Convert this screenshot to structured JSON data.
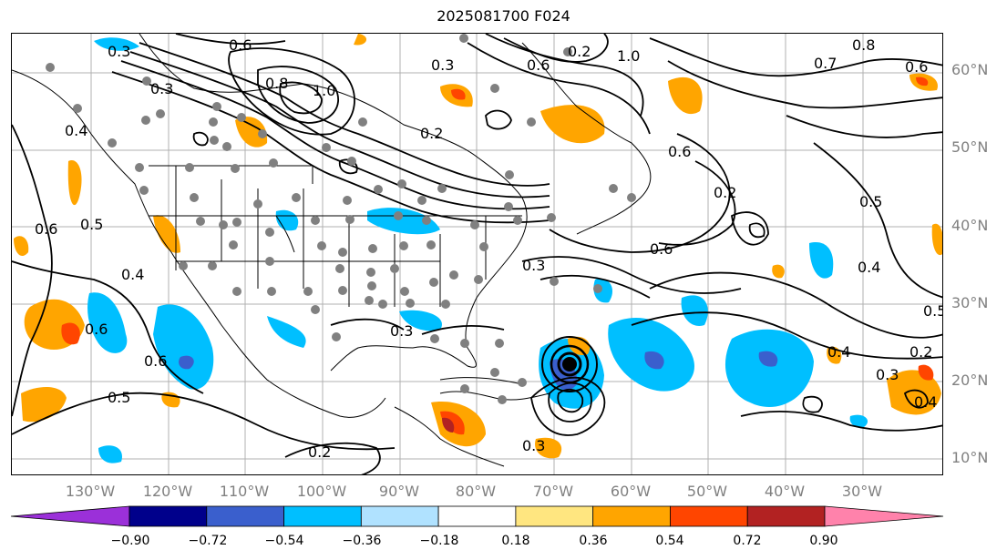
{
  "title": "2025081700 F024",
  "lat_labels": [
    "60°N",
    "50°N",
    "40°N",
    "30°N",
    "20°N",
    "10°N"
  ],
  "lon_labels": [
    "130°W",
    "120°W",
    "110°W",
    "100°W",
    "90°W",
    "80°W",
    "70°W",
    "60°W",
    "50°W",
    "40°W",
    "30°W"
  ],
  "contour_labels": [
    "0.3",
    "0.6",
    "0.3",
    "1.0",
    "0.2",
    "0.8",
    "0.3",
    "1.0",
    "0.6",
    "0.2",
    "0.8",
    "0.7",
    "0.6",
    "0.4",
    "0.5",
    "0.6",
    "0.6",
    "0.3",
    "0.6",
    "0.5",
    "0.4",
    "0.4",
    "0.3",
    "0.6",
    "0.2",
    "0.5",
    "0.4",
    "0.3",
    "0.2",
    "0.3",
    "0.6",
    "0.4",
    "0.5",
    "0.2"
  ],
  "colorbar": {
    "ticks": [
      "−0.90",
      "−0.72",
      "−0.54",
      "−0.36",
      "−0.18",
      "0.18",
      "0.36",
      "0.54",
      "0.72",
      "0.90"
    ],
    "colors": [
      "#9b30d9",
      "#00008b",
      "#3a5fcd",
      "#00bfff",
      "#b0e2ff",
      "#ffffff",
      "#ffe680",
      "#ffa500",
      "#ff4500",
      "#b22222",
      "#ff82ab"
    ]
  }
}
